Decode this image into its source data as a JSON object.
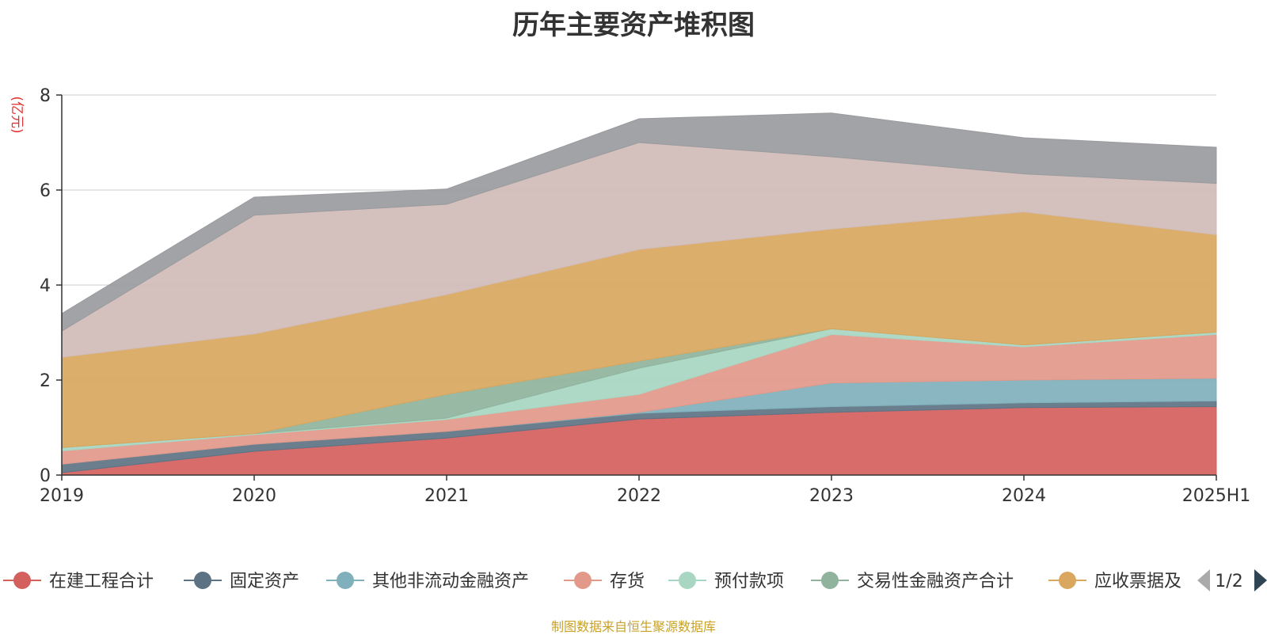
{
  "chart_data": {
    "type": "area",
    "stacked": true,
    "title": "历年主要资产堆积图",
    "ylabel": "(亿元)",
    "ylim": [
      0,
      8
    ],
    "yticks": [
      0,
      2,
      4,
      6,
      8
    ],
    "grid": true,
    "categories": [
      "2019",
      "2020",
      "2021",
      "2022",
      "2023",
      "2024",
      "2025H1"
    ],
    "series": [
      {
        "name": "在建工程合计",
        "color": "#d4605e",
        "values": [
          0.05,
          0.5,
          0.78,
          1.18,
          1.32,
          1.42,
          1.44
        ]
      },
      {
        "name": "固定资产",
        "color": "#5d7384",
        "values": [
          0.18,
          0.15,
          0.14,
          0.12,
          0.12,
          0.1,
          0.12
        ]
      },
      {
        "name": "其他非流动金融资产",
        "color": "#7fb0bb",
        "values": [
          0.0,
          0.0,
          0.0,
          0.02,
          0.5,
          0.48,
          0.48
        ]
      },
      {
        "name": "存货",
        "color": "#e2998a",
        "values": [
          0.28,
          0.2,
          0.25,
          0.38,
          1.02,
          0.7,
          0.92
        ]
      },
      {
        "name": "预付款项",
        "color": "#a8d6c2",
        "values": [
          0.07,
          0.02,
          0.03,
          0.55,
          0.12,
          0.04,
          0.05
        ]
      },
      {
        "name": "交易性金融资产合计",
        "color": "#8fb39c",
        "values": [
          0.0,
          0.0,
          0.5,
          0.15,
          0.0,
          0.0,
          0.0
        ]
      },
      {
        "name": "应收票据及",
        "color": "#d9a75e",
        "values": [
          1.9,
          2.1,
          2.1,
          2.35,
          2.1,
          2.8,
          2.05
        ]
      },
      {
        "name": "",
        "color": "#d0bcb8",
        "values": [
          0.55,
          2.5,
          1.9,
          2.25,
          1.52,
          0.8,
          1.08
        ]
      },
      {
        "name": "",
        "color": "#9a9b9e",
        "values": [
          0.37,
          0.38,
          0.32,
          0.5,
          0.92,
          0.76,
          0.76
        ]
      }
    ]
  },
  "legend": {
    "pager": "1/2"
  },
  "source_note": "制图数据来自恒生聚源数据库"
}
